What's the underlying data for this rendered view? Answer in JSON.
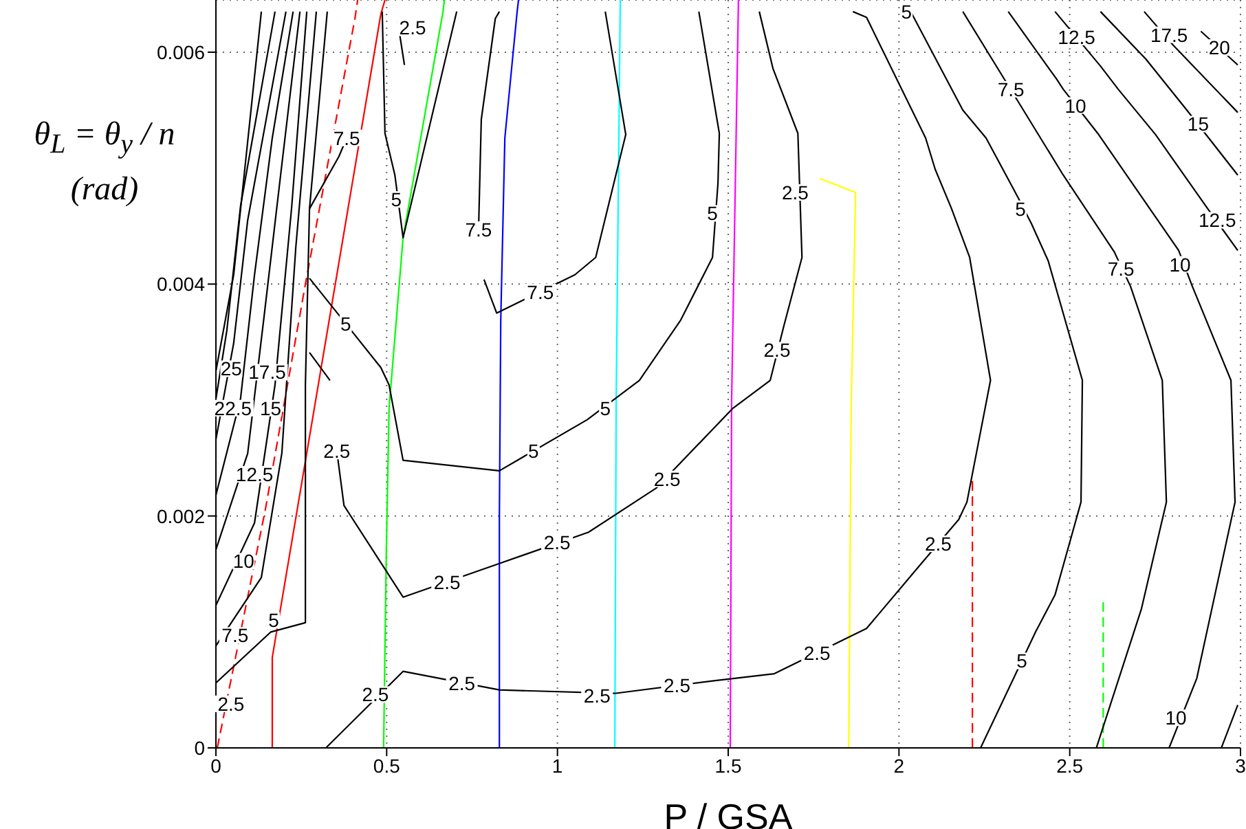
{
  "chart_data": {
    "type": "line",
    "xlabel": "P / GSA",
    "ylabel": "θ$_{L}$ = θ$_{y}$ / n (rad)",
    "xlim": [
      0,
      3
    ],
    "xticks": [
      0,
      0.5,
      1,
      1.5,
      2,
      2.5,
      3
    ],
    "ylim": [
      0,
      0.00645
    ],
    "yticks": [
      0,
      0.002,
      0.004,
      0.006
    ],
    "grid": true,
    "marker": "none",
    "series": [
      {
        "color": "#ff0000",
        "line_style": "solid",
        "x": [
          0.165,
          0.165,
          0.483,
          0.495
        ],
        "values": [
          0,
          0.00078,
          0.00633,
          0.00645
        ]
      },
      {
        "color": "#ff0000",
        "line_style": "dashed",
        "x": [
          0.004,
          0.145,
          0.262,
          0.407,
          0.415
        ],
        "values": [
          0,
          0.00206,
          0.004,
          0.00629,
          0.00645
        ]
      },
      {
        "color": "#00ff00",
        "line_style": "solid",
        "x": [
          0.491,
          0.499,
          0.507,
          0.548,
          0.665,
          0.669
        ],
        "values": [
          0,
          0.00171,
          0.00293,
          0.0044,
          0.00635,
          0.00645
        ]
      },
      {
        "color": "#0000ff",
        "line_style": "solid",
        "x": [
          0.83,
          0.83,
          0.834,
          0.846,
          0.882,
          0.886
        ],
        "values": [
          0,
          0.002,
          0.00369,
          0.00526,
          0.00635,
          0.00645
        ]
      },
      {
        "color": "#00ffff",
        "line_style": "solid",
        "x": [
          1.168,
          1.172,
          1.184
        ],
        "values": [
          0,
          0.003,
          0.00645
        ]
      },
      {
        "color": "#ff00ff",
        "line_style": "solid",
        "x": [
          1.506,
          1.51,
          1.53
        ],
        "values": [
          0,
          0.003,
          0.00645
        ]
      },
      {
        "color": "#ffff00",
        "line_style": "solid",
        "x": [
          1.768,
          1.873,
          1.86,
          1.853
        ],
        "values": [
          0.00491,
          0.00479,
          0.00293,
          0
        ]
      },
      {
        "color": "#ff0000",
        "line_style": "dashed",
        "x": [
          2.215,
          2.215
        ],
        "values": [
          0,
          0.00232
        ]
      },
      {
        "color": "#00ff00",
        "line_style": "dashed",
        "x": [
          2.598,
          2.598
        ],
        "values": [
          0,
          0.00129
        ]
      },
      {
        "color": "#000000",
        "line_style": "solid",
        "x": [
          1.865,
          1.905,
          2.078,
          2.106,
          2.154,
          2.207,
          2.268,
          2.199,
          2.175,
          2.054,
          1.905,
          1.635,
          1.462,
          1.168,
          0.83,
          0.548,
          0.322
        ],
        "values": [
          0.00635,
          0.0063,
          0.00526,
          0.00499,
          0.00465,
          0.00423,
          0.00317,
          0.00212,
          0.00197,
          0.00155,
          0.00103,
          0.00064,
          0.00058,
          0.00047,
          0.0005,
          0.00066,
          0
        ]
      },
      {
        "color": "#000000",
        "line_style": "solid",
        "x": [
          2.038,
          2.187,
          2.255,
          2.348,
          2.388,
          2.437,
          2.537,
          2.533,
          2.457,
          2.4,
          2.239
        ],
        "values": [
          0.00633,
          0.0055,
          0.00526,
          0.00475,
          0.00452,
          0.0042,
          0.00317,
          0.00212,
          0.00132,
          0.001,
          0
        ]
      },
      {
        "color": "#000000",
        "line_style": "solid",
        "x": [
          2.187,
          2.308,
          2.356,
          2.481,
          2.63,
          2.678,
          2.771,
          2.783,
          2.71,
          2.578
        ],
        "values": [
          0.00635,
          0.00577,
          0.00554,
          0.00494,
          0.00428,
          0.00398,
          0.00317,
          0.00212,
          0.0012,
          0
        ]
      },
      {
        "color": "#000000",
        "line_style": "solid",
        "x": [
          2.32,
          2.461,
          2.481,
          2.582,
          2.819,
          2.859,
          2.972,
          2.984,
          2.872,
          2.791
        ],
        "values": [
          0.00635,
          0.00577,
          0.00568,
          0.0053,
          0.00429,
          0.00398,
          0.00317,
          0.00212,
          0.0006,
          0
        ]
      },
      {
        "color": "#000000",
        "line_style": "solid",
        "x": [
          2.457,
          2.59,
          2.642,
          2.751,
          2.904,
          2.992
        ],
        "values": [
          0.00635,
          0.00588,
          0.00568,
          0.00529,
          0.00465,
          0.00429
        ]
      },
      {
        "color": "#000000",
        "line_style": "solid",
        "x": [
          2.992,
          2.944
        ],
        "values": [
          0.00037,
          0
        ]
      },
      {
        "color": "#000000",
        "line_style": "solid",
        "x": [
          2.59,
          2.723,
          2.843,
          2.992
        ],
        "values": [
          0.00635,
          0.00594,
          0.0055,
          0.00494
        ]
      },
      {
        "color": "#000000",
        "line_style": "solid",
        "x": [
          2.718,
          2.803,
          2.992
        ],
        "values": [
          0.00635,
          0.00606,
          0.00548
        ]
      },
      {
        "color": "#000000",
        "line_style": "solid",
        "x": [
          2.884,
          2.992
        ],
        "values": [
          0.00618,
          0.00589
        ]
      },
      {
        "color": "#000000",
        "line_style": "solid",
        "x": [
          0.274,
          0.483,
          0.507,
          0.548,
          0.83,
          1.087,
          1.24,
          1.361,
          1.454,
          1.47,
          1.474,
          1.414
        ],
        "values": [
          0.00405,
          0.00328,
          0.00313,
          0.00248,
          0.00239,
          0.00283,
          0.00317,
          0.00369,
          0.00423,
          0.00487,
          0.0053,
          0.00635
        ]
      },
      {
        "color": "#000000",
        "line_style": "solid",
        "x": [
          0.487,
          0.495,
          0.524,
          0.548,
          0.705
        ],
        "values": [
          0.00635,
          0.0053,
          0.00494,
          0.0044,
          0.00635
        ]
      },
      {
        "color": "#000000",
        "line_style": "solid",
        "x": [
          0.83,
          0.818,
          0.777,
          0.769
        ],
        "values": [
          0.00635,
          0.00629,
          0.00542,
          0.00447
        ]
      },
      {
        "color": "#000000",
        "line_style": "solid",
        "x": [
          0.785,
          0.822,
          1.051,
          1.112,
          1.2,
          1.14
        ],
        "values": [
          0.00404,
          0.00375,
          0.00408,
          0.00423,
          0.00529,
          0.00635
        ]
      },
      {
        "color": "#000000",
        "line_style": "solid",
        "x": [
          0.576,
          0.532,
          0.552
        ],
        "values": [
          0.00621,
          0.00627,
          0.00589
        ]
      },
      {
        "color": "#000000",
        "line_style": "solid",
        "x": [
          0.354,
          0.375,
          0.548,
          0.83,
          1.091,
          1.289,
          1.514,
          1.623,
          1.663,
          1.716,
          1.704,
          1.631,
          1.591
        ],
        "values": [
          0.00256,
          0.00209,
          0.0013,
          0.00159,
          0.00186,
          0.00224,
          0.00293,
          0.00317,
          0.00364,
          0.00423,
          0.0053,
          0.00586,
          0.00635
        ]
      },
      {
        "color": "#000000",
        "line_style": "solid",
        "x": [
          0,
          0.161,
          0.262,
          0.262,
          0.274,
          0.326
        ],
        "values": [
          0.00056,
          0.001,
          0.00108,
          0.00313,
          0.00465,
          0.00635
        ]
      },
      {
        "color": "#000000",
        "line_style": "solid",
        "x": [
          0.383,
          0.36,
          0.274
        ],
        "values": [
          0.00526,
          0.0051,
          0.00465
        ]
      },
      {
        "color": "#000000",
        "line_style": "solid",
        "x": [
          0.274,
          0.334
        ],
        "values": [
          0.00341,
          0.00317
        ]
      },
      {
        "color": "#000000",
        "line_style": "solid",
        "x": [
          0,
          0.133,
          0.193,
          0.234,
          0.294
        ],
        "values": [
          0.00088,
          0.00147,
          0.00254,
          0.00432,
          0.00635
        ]
      },
      {
        "color": "#000000",
        "line_style": "solid",
        "x": [
          0,
          0.113,
          0.173,
          0.222,
          0.266
        ],
        "values": [
          0.00123,
          0.00194,
          0.00313,
          0.00467,
          0.00635
        ]
      },
      {
        "color": "#000000",
        "line_style": "solid",
        "x": [
          0,
          0.093,
          0.141,
          0.193,
          0.246
        ],
        "values": [
          0.00171,
          0.00254,
          0.00372,
          0.00503,
          0.00635
        ]
      },
      {
        "color": "#000000",
        "line_style": "solid",
        "x": [
          0,
          0.072,
          0.113,
          0.165,
          0.226
        ],
        "values": [
          0.00218,
          0.00301,
          0.00408,
          0.00526,
          0.00635
        ]
      },
      {
        "color": "#000000",
        "line_style": "solid",
        "x": [
          0,
          0.052,
          0.093,
          0.205
        ],
        "values": [
          0.00266,
          0.00349,
          0.00455,
          0.00635
        ]
      },
      {
        "color": "#000000",
        "line_style": "solid",
        "x": [
          0,
          0.032,
          0.072,
          0.173
        ],
        "values": [
          0.00301,
          0.0036,
          0.00467,
          0.00635
        ]
      },
      {
        "color": "#000000",
        "line_style": "solid",
        "x": [
          0,
          0.052,
          0.133
        ],
        "values": [
          0.00325,
          0.00408,
          0.00635
        ]
      }
    ],
    "annotations": [
      {
        "text": "2.5",
        "x": 0.576,
        "y": 0.00621
      },
      {
        "text": "7.5",
        "x": 0.383,
        "y": 0.00526
      },
      {
        "text": "5",
        "x": 0.528,
        "y": 0.00473
      },
      {
        "text": "7.5",
        "x": 0.769,
        "y": 0.00447
      },
      {
        "text": "7.5",
        "x": 0.95,
        "y": 0.00393
      },
      {
        "text": "5",
        "x": 1.454,
        "y": 0.00461
      },
      {
        "text": "5",
        "x": 0.38,
        "y": 0.00366
      },
      {
        "text": "5",
        "x": 1.14,
        "y": 0.00293
      },
      {
        "text": "5",
        "x": 0.93,
        "y": 0.00256
      },
      {
        "text": "2.5",
        "x": 0.354,
        "y": 0.00256
      },
      {
        "text": "2.5",
        "x": 1.321,
        "y": 0.00232
      },
      {
        "text": "2.5",
        "x": 0.999,
        "y": 0.00177
      },
      {
        "text": "2.5",
        "x": 0.677,
        "y": 0.00143
      },
      {
        "text": "2.5",
        "x": 1.643,
        "y": 0.00343
      },
      {
        "text": "2.5",
        "x": 1.696,
        "y": 0.00479
      },
      {
        "text": "2.5",
        "x": 0.467,
        "y": 0.00046
      },
      {
        "text": "2.5",
        "x": 0.72,
        "y": 0.00056
      },
      {
        "text": "2.5",
        "x": 1.116,
        "y": 0.00045
      },
      {
        "text": "2.5",
        "x": 1.35,
        "y": 0.00054
      },
      {
        "text": "2.5",
        "x": 1.76,
        "y": 0.00082
      },
      {
        "text": "2.5",
        "x": 2.115,
        "y": 0.00176
      },
      {
        "text": "5",
        "x": 2.022,
        "y": 0.00635
      },
      {
        "text": "5",
        "x": 2.356,
        "y": 0.00465
      },
      {
        "text": "5",
        "x": 2.36,
        "y": 0.00075
      },
      {
        "text": "7.5",
        "x": 2.328,
        "y": 0.00568
      },
      {
        "text": "7.5",
        "x": 2.65,
        "y": 0.00413
      },
      {
        "text": "10",
        "x": 2.517,
        "y": 0.00554
      },
      {
        "text": "10",
        "x": 2.823,
        "y": 0.00417
      },
      {
        "text": "10",
        "x": 2.811,
        "y": 0.00026
      },
      {
        "text": "12.5",
        "x": 2.52,
        "y": 0.00613
      },
      {
        "text": "12.5",
        "x": 2.932,
        "y": 0.00455
      },
      {
        "text": "15",
        "x": 2.876,
        "y": 0.00538
      },
      {
        "text": "17.5",
        "x": 2.791,
        "y": 0.00615
      },
      {
        "text": "20",
        "x": 2.938,
        "y": 0.00604
      },
      {
        "text": "25",
        "x": 0.045,
        "y": 0.00327
      },
      {
        "text": "17.5",
        "x": 0.15,
        "y": 0.00324
      },
      {
        "text": "22.5",
        "x": 0.05,
        "y": 0.00293
      },
      {
        "text": "15",
        "x": 0.16,
        "y": 0.00293
      },
      {
        "text": "12.5",
        "x": 0.113,
        "y": 0.00236
      },
      {
        "text": "10",
        "x": 0.081,
        "y": 0.00161
      },
      {
        "text": "7.5",
        "x": 0.056,
        "y": 0.00097
      },
      {
        "text": "5",
        "x": 0.169,
        "y": 0.0011
      },
      {
        "text": "2.5",
        "x": 0.044,
        "y": 0.00038
      }
    ]
  }
}
